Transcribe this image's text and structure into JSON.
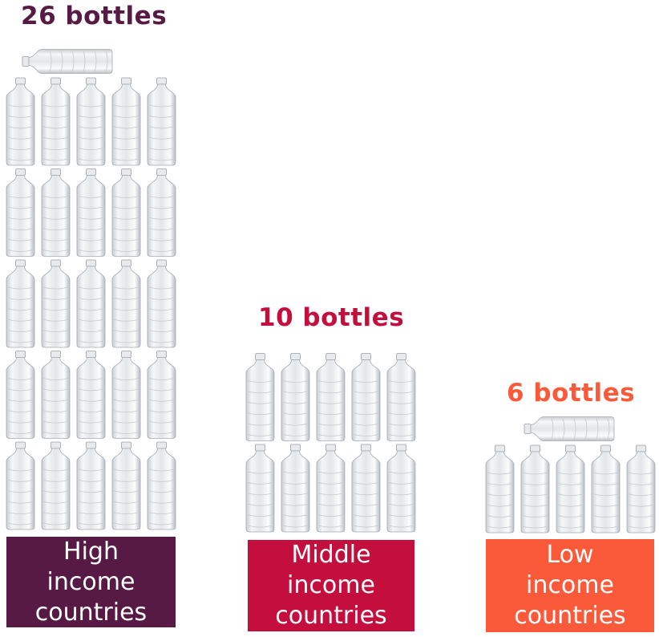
{
  "chart_data": {
    "type": "bar",
    "unit": "bottles",
    "categories": [
      "High income countries",
      "Middle income countries",
      "Low income countries"
    ],
    "values": [
      26,
      10,
      6
    ],
    "value_labels": [
      "26 bottles",
      "10 bottles",
      "6 bottles"
    ],
    "category_lines": [
      [
        "High",
        "income",
        "countries"
      ],
      [
        "Middle",
        "income",
        "countries"
      ],
      [
        "Low",
        "income",
        "countries"
      ]
    ],
    "colors": [
      "#561a45",
      "#c40f3e",
      "#fb5a3a"
    ]
  }
}
